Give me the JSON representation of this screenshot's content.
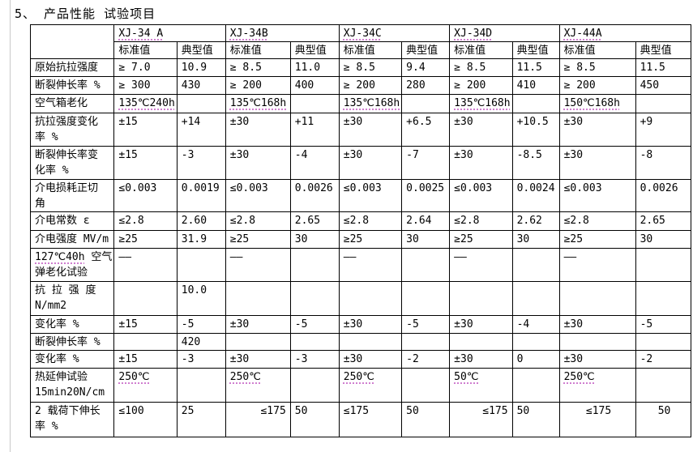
{
  "page": {
    "title": "5、 产品性能 试验项目"
  },
  "table": {
    "models": [
      {
        "name": "XJ-34 A"
      },
      {
        "name": "XJ-34B"
      },
      {
        "name": "XJ-34C"
      },
      {
        "name": "XJ-34D"
      },
      {
        "name": "XJ-44A"
      }
    ],
    "subheaders": [
      "标准值",
      "典型值"
    ],
    "rows": [
      {
        "label": "原始抗拉强度",
        "values": [
          "≥ 7.0",
          "10.9",
          "≥ 8.5",
          "11.0",
          "≥ 8.5",
          "9.4",
          "≥ 8.5",
          "11.5",
          "≥ 8.5",
          "11.5"
        ]
      },
      {
        "label": "断裂伸长率 %",
        "values": [
          "≥ 300",
          "430",
          "≥ 200",
          "400",
          "≥ 200",
          "280",
          "≥ 200",
          "410",
          "≥ 200",
          "450"
        ]
      },
      {
        "label": "空气箱老化",
        "values": [
          "135℃240h",
          "",
          "135℃168h",
          "",
          "135℃168h",
          "",
          "135℃168h",
          "",
          "150℃168h",
          ""
        ]
      },
      {
        "label": "抗拉强度变化\n率 %",
        "values": [
          "±15",
          "+14",
          "±30",
          "+11",
          "±30",
          "+6.5",
          "±30",
          "+10.5",
          "±30",
          "+9"
        ]
      },
      {
        "label": "断裂伸长率变\n化率 %",
        "values": [
          "±15",
          "-3",
          "±30",
          "-4",
          "±30",
          "-7",
          "±30",
          "-8.5",
          "±30",
          "-8"
        ]
      },
      {
        "label": "介电损耗正切\n角",
        "values": [
          "≤0.003",
          "0.0019",
          "≤0.003",
          "0.0026",
          "≤0.003",
          "0.0025",
          "≤0.003",
          "0.0024",
          "≤0.003",
          "0.0026"
        ]
      },
      {
        "label": "介电常数 ε",
        "values": [
          "≤2.8",
          "2.60",
          "≤2.8",
          "2.65",
          "≤2.8",
          "2.64",
          "≤2.8",
          "2.62",
          "≤2.8",
          "2.65"
        ]
      },
      {
        "label": "介电强度 MV/m",
        "values": [
          "≥25",
          "31.9",
          "≥25",
          "30",
          "≥25",
          "30",
          "≥25",
          "30",
          "≥25",
          "30"
        ]
      },
      {
        "label": "127℃40h 空气\n弹老化试验",
        "values": [
          "——",
          "",
          "——",
          "",
          "——",
          "",
          "——",
          "",
          "——",
          ""
        ]
      },
      {
        "label": "抗 拉 强 度\nN/mm2",
        "values": [
          "",
          "10.0",
          "",
          "",
          "",
          "",
          "",
          "",
          "",
          ""
        ]
      },
      {
        "label": "变化率 %",
        "values": [
          "±15",
          "-5",
          "±30",
          "-5",
          "±30",
          "-5",
          "±30",
          "-4",
          "±30",
          "-5"
        ]
      },
      {
        "label": "断裂伸长率 %",
        "values": [
          "",
          "420",
          "",
          "",
          "",
          "",
          "",
          "",
          "",
          ""
        ]
      },
      {
        "label": "变化率 %",
        "values": [
          "±15",
          "-3",
          "±30",
          "-3",
          "±30",
          "-2",
          "±30",
          "0",
          "±30",
          "-2"
        ]
      },
      {
        "label": "热延伸试验\n15min20N/cm",
        "values": [
          "250℃",
          "",
          "250℃",
          "",
          "250℃",
          "",
          "50℃",
          "",
          "250℃",
          ""
        ]
      },
      {
        "label": "2 载荷下伸长\n率 %",
        "values": [
          "≤100",
          "25",
          "≤175",
          "50",
          "≤175",
          "50",
          "≤175",
          "50",
          "≤175",
          "50"
        ]
      }
    ]
  },
  "colors": {
    "border": "#000000",
    "squiggle": "#cf7ecf",
    "margin_line": "#c9c9c9"
  }
}
